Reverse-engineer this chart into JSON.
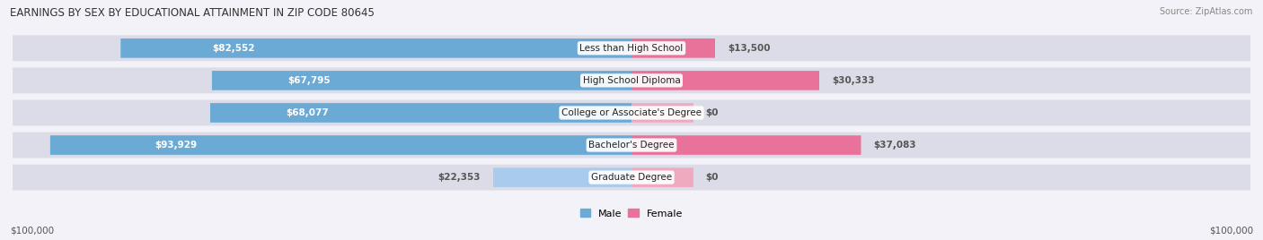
{
  "title": "EARNINGS BY SEX BY EDUCATIONAL ATTAINMENT IN ZIP CODE 80645",
  "source": "Source: ZipAtlas.com",
  "categories": [
    "Less than High School",
    "High School Diploma",
    "College or Associate's Degree",
    "Bachelor's Degree",
    "Graduate Degree"
  ],
  "male_values": [
    82552,
    67795,
    68077,
    93929,
    22353
  ],
  "female_values": [
    13500,
    30333,
    0,
    37083,
    0
  ],
  "male_color": "#6aaad4",
  "male_color_light": "#aaccec",
  "female_color": "#e8729a",
  "female_color_light": "#f0aac0",
  "max_value": 100000,
  "bg_color": "#f2f2f8",
  "bar_bg_color": "#dcdce8",
  "label_color_white": "#ffffff",
  "label_color_dark": "#555555",
  "axis_label_left": "$100,000",
  "axis_label_right": "$100,000",
  "legend_male": "Male",
  "legend_female": "Female"
}
